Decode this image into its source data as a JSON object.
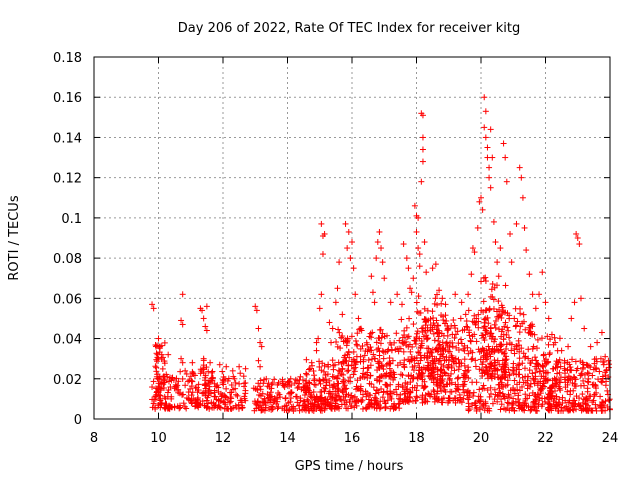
{
  "chart_data": {
    "type": "scatter",
    "title": "Day 206 of 2022, Rate Of TEC Index for receiver kitg",
    "xlabel": "GPS time / hours",
    "ylabel": "ROTI / TECUs",
    "xlim": [
      8,
      24
    ],
    "ylim": [
      0,
      0.18
    ],
    "xticks": [
      8,
      10,
      12,
      14,
      16,
      18,
      20,
      22,
      24
    ],
    "xtick_labels": [
      "8",
      "10",
      "12",
      "14",
      "16",
      "18",
      "20",
      "22",
      "24"
    ],
    "yticks": [
      0,
      0.02,
      0.04,
      0.06,
      0.08,
      0.1,
      0.12,
      0.14,
      0.16,
      0.18
    ],
    "ytick_labels": [
      "0",
      "0.02",
      "0.04",
      "0.06",
      "0.08",
      "0.1",
      "0.12",
      "0.14",
      "0.16",
      "0.18"
    ],
    "grid": true,
    "marker": "+",
    "color": "#ff0000",
    "series": [
      {
        "name": "ROTI",
        "points": [
          [
            9.8,
            0.057
          ],
          [
            9.85,
            0.055
          ],
          [
            10.0,
            0.04
          ],
          [
            10.05,
            0.036
          ],
          [
            10.1,
            0.032
          ],
          [
            10.3,
            0.032
          ],
          [
            10.7,
            0.03
          ],
          [
            10.75,
            0.028
          ],
          [
            10.75,
            0.062
          ],
          [
            10.7,
            0.049
          ],
          [
            10.75,
            0.047
          ],
          [
            11.05,
            0.028
          ],
          [
            11.3,
            0.055
          ],
          [
            11.35,
            0.054
          ],
          [
            11.4,
            0.05
          ],
          [
            11.45,
            0.046
          ],
          [
            11.5,
            0.056
          ],
          [
            11.5,
            0.044
          ],
          [
            11.4,
            0.03
          ],
          [
            11.6,
            0.028
          ],
          [
            11.9,
            0.027
          ],
          [
            12.1,
            0.026
          ],
          [
            12.5,
            0.026
          ],
          [
            12.7,
            0.025
          ],
          [
            13.0,
            0.056
          ],
          [
            13.05,
            0.054
          ],
          [
            13.1,
            0.045
          ],
          [
            13.15,
            0.038
          ],
          [
            13.2,
            0.036
          ],
          [
            13.1,
            0.029
          ],
          [
            13.15,
            0.026
          ],
          [
            14.0,
            0.018
          ],
          [
            14.1,
            0.02
          ],
          [
            14.3,
            0.019
          ],
          [
            14.4,
            0.021
          ],
          [
            14.6,
            0.022
          ],
          [
            14.7,
            0.025
          ],
          [
            14.75,
            0.028
          ],
          [
            14.9,
            0.034
          ],
          [
            14.9,
            0.038
          ],
          [
            14.95,
            0.04
          ],
          [
            15.0,
            0.055
          ],
          [
            15.05,
            0.062
          ],
          [
            15.1,
            0.091
          ],
          [
            15.15,
            0.092
          ],
          [
            15.05,
            0.097
          ],
          [
            15.1,
            0.082
          ],
          [
            15.3,
            0.048
          ],
          [
            15.35,
            0.038
          ],
          [
            15.4,
            0.045
          ],
          [
            15.5,
            0.058
          ],
          [
            15.55,
            0.065
          ],
          [
            15.6,
            0.078
          ],
          [
            15.7,
            0.052
          ],
          [
            15.8,
            0.097
          ],
          [
            15.85,
            0.085
          ],
          [
            15.9,
            0.093
          ],
          [
            16.0,
            0.088
          ],
          [
            15.95,
            0.08
          ],
          [
            16.05,
            0.075
          ],
          [
            16.1,
            0.062
          ],
          [
            16.2,
            0.05
          ],
          [
            16.3,
            0.044
          ],
          [
            16.6,
            0.071
          ],
          [
            16.65,
            0.063
          ],
          [
            16.7,
            0.058
          ],
          [
            16.75,
            0.08
          ],
          [
            16.8,
            0.088
          ],
          [
            16.85,
            0.093
          ],
          [
            16.9,
            0.085
          ],
          [
            16.95,
            0.078
          ],
          [
            17.0,
            0.07
          ],
          [
            17.2,
            0.058
          ],
          [
            17.4,
            0.062
          ],
          [
            17.55,
            0.057
          ],
          [
            17.6,
            0.087
          ],
          [
            17.7,
            0.08
          ],
          [
            17.75,
            0.075
          ],
          [
            17.8,
            0.065
          ],
          [
            17.85,
            0.063
          ],
          [
            17.9,
            0.07
          ],
          [
            17.95,
            0.106
          ],
          [
            18.0,
            0.101
          ],
          [
            18.05,
            0.1
          ],
          [
            18.0,
            0.093
          ],
          [
            18.05,
            0.085
          ],
          [
            18.1,
            0.082
          ],
          [
            18.1,
            0.076
          ],
          [
            18.15,
            0.152
          ],
          [
            18.2,
            0.151
          ],
          [
            18.2,
            0.14
          ],
          [
            18.2,
            0.134
          ],
          [
            18.2,
            0.128
          ],
          [
            18.15,
            0.118
          ],
          [
            18.25,
            0.088
          ],
          [
            18.3,
            0.073
          ],
          [
            18.5,
            0.075
          ],
          [
            18.6,
            0.077
          ],
          [
            18.7,
            0.064
          ],
          [
            18.8,
            0.06
          ],
          [
            18.9,
            0.057
          ],
          [
            19.2,
            0.062
          ],
          [
            19.4,
            0.058
          ],
          [
            19.6,
            0.062
          ],
          [
            19.7,
            0.072
          ],
          [
            19.75,
            0.085
          ],
          [
            19.8,
            0.083
          ],
          [
            19.9,
            0.095
          ],
          [
            19.95,
            0.108
          ],
          [
            20.0,
            0.11
          ],
          [
            20.05,
            0.104
          ],
          [
            20.1,
            0.16
          ],
          [
            20.15,
            0.153
          ],
          [
            20.1,
            0.145
          ],
          [
            20.15,
            0.14
          ],
          [
            20.2,
            0.135
          ],
          [
            20.2,
            0.13
          ],
          [
            20.25,
            0.125
          ],
          [
            20.25,
            0.12
          ],
          [
            20.3,
            0.144
          ],
          [
            20.35,
            0.13
          ],
          [
            20.3,
            0.115
          ],
          [
            20.4,
            0.098
          ],
          [
            20.45,
            0.088
          ],
          [
            20.5,
            0.078
          ],
          [
            20.55,
            0.071
          ],
          [
            20.6,
            0.085
          ],
          [
            20.7,
            0.137
          ],
          [
            20.75,
            0.13
          ],
          [
            20.8,
            0.118
          ],
          [
            20.9,
            0.092
          ],
          [
            20.95,
            0.078
          ],
          [
            21.1,
            0.097
          ],
          [
            21.2,
            0.125
          ],
          [
            21.25,
            0.12
          ],
          [
            21.3,
            0.11
          ],
          [
            21.35,
            0.095
          ],
          [
            21.4,
            0.084
          ],
          [
            21.5,
            0.072
          ],
          [
            21.6,
            0.062
          ],
          [
            21.7,
            0.055
          ],
          [
            21.8,
            0.062
          ],
          [
            21.9,
            0.073
          ],
          [
            22.0,
            0.058
          ],
          [
            22.1,
            0.05
          ],
          [
            22.2,
            0.042
          ],
          [
            22.3,
            0.038
          ],
          [
            22.5,
            0.034
          ],
          [
            22.7,
            0.036
          ],
          [
            22.8,
            0.05
          ],
          [
            22.9,
            0.058
          ],
          [
            22.95,
            0.092
          ],
          [
            23.0,
            0.09
          ],
          [
            23.05,
            0.087
          ],
          [
            23.1,
            0.06
          ],
          [
            23.2,
            0.045
          ],
          [
            23.4,
            0.036
          ],
          [
            23.6,
            0.038
          ],
          [
            23.75,
            0.043
          ],
          [
            23.85,
            0.031
          ],
          [
            23.95,
            0.029
          ]
        ]
      }
    ]
  }
}
